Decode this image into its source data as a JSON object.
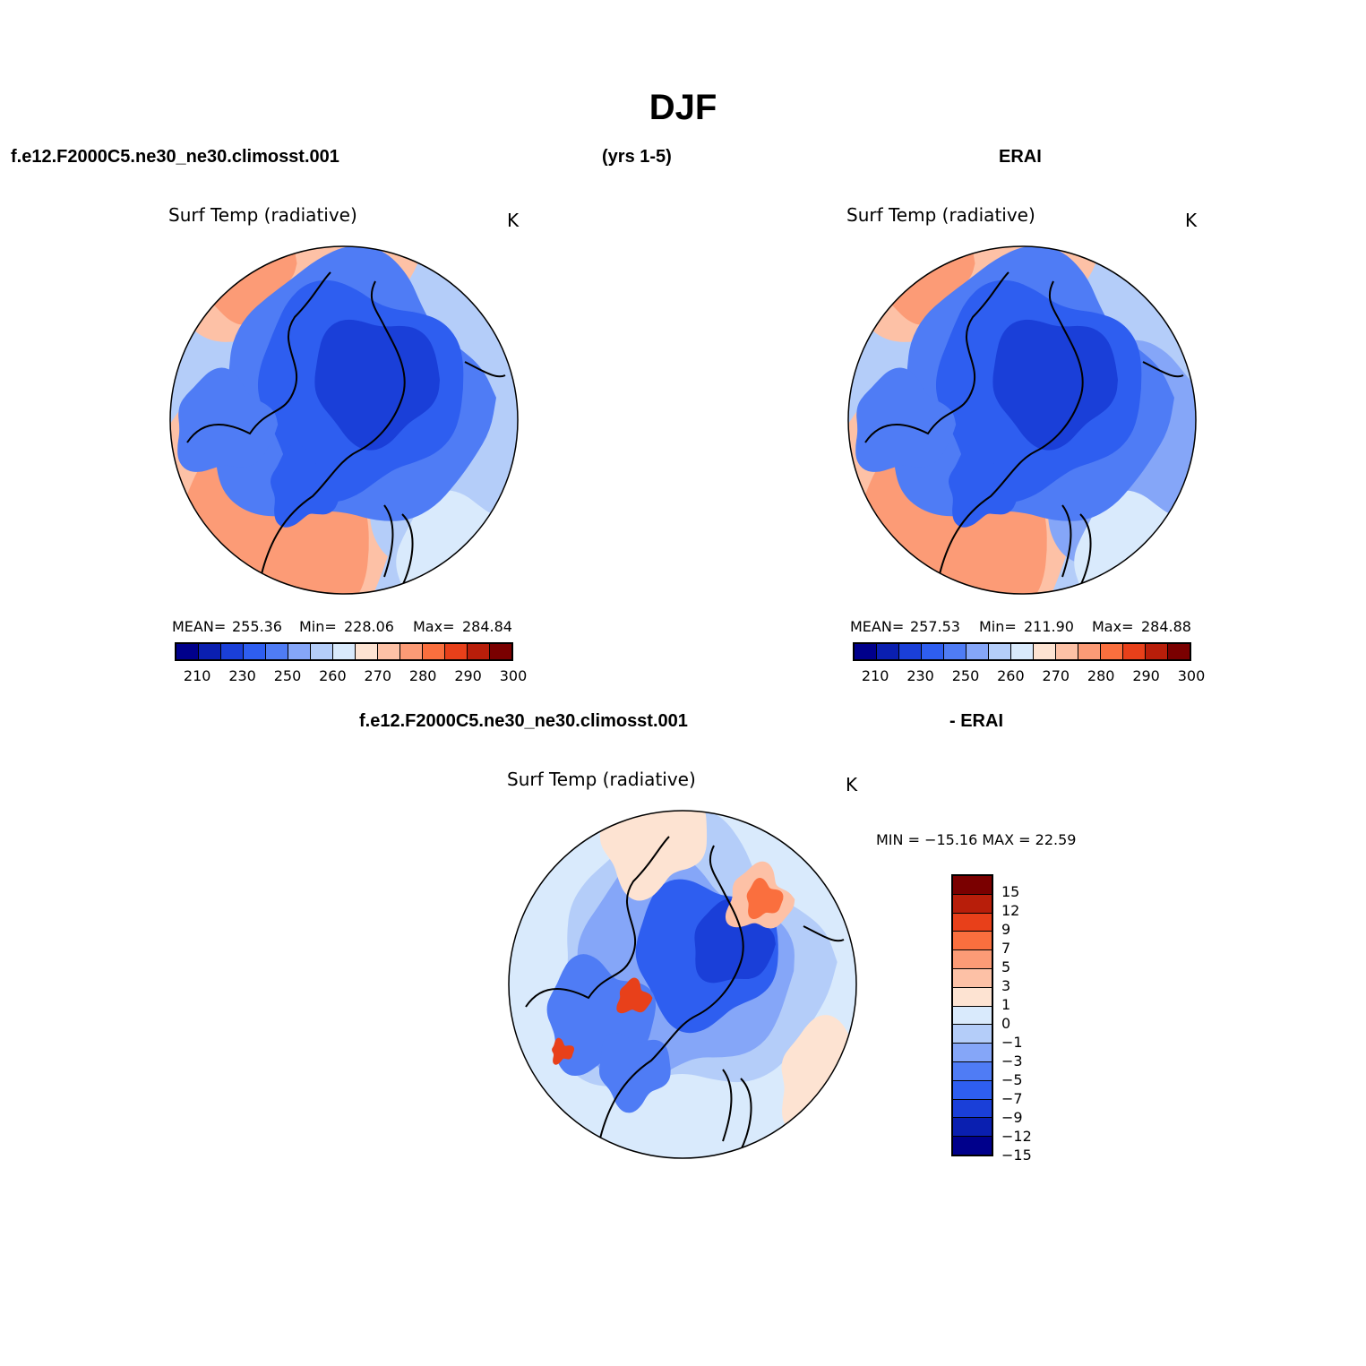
{
  "figure_title": "DJF",
  "header": {
    "case": "f.e12.F2000C5.ne30_ne30.climosst.001",
    "years": "(yrs 1-5)",
    "obs": "ERAI"
  },
  "colors": {
    "abs": [
      "#00008b",
      "#0a1fb0",
      "#1a3fd8",
      "#2e5ef0",
      "#4f7cf5",
      "#85a6f8",
      "#b4cdf9",
      "#d9eafc",
      "#fde3d2",
      "#fdc1a6",
      "#fc9b76",
      "#fa6f3e",
      "#e8401a",
      "#b81e0a",
      "#7a0000"
    ],
    "diff": [
      "#7a0000",
      "#b81e0a",
      "#e8401a",
      "#fa6f3e",
      "#fc9b76",
      "#fdc1a6",
      "#fde3d2",
      "#d9eafc",
      "#b4cdf9",
      "#85a6f8",
      "#4f7cf5",
      "#2e5ef0",
      "#1a3fd8",
      "#0a1fb0",
      "#00008b"
    ]
  },
  "chart_data": [
    {
      "id": "model",
      "type": "contour-map",
      "projection": "north-polar-stereographic",
      "title": "Surf Temp (radiative)",
      "units": "K",
      "stats": {
        "mean_label": "MEAN=",
        "mean": "255.36",
        "min_label": "Min=",
        "min": "228.06",
        "max_label": "Max=",
        "max": "284.84"
      },
      "colorbar": {
        "levels": [
          205,
          210,
          220,
          230,
          240,
          250,
          255,
          260,
          265,
          270,
          275,
          280,
          285,
          290,
          295,
          300
        ],
        "tick_labels": [
          "210",
          "230",
          "250",
          "260",
          "270",
          "280",
          "290",
          "300"
        ],
        "range": [
          210,
          300
        ]
      }
    },
    {
      "id": "obs",
      "type": "contour-map",
      "projection": "north-polar-stereographic",
      "title": "Surf Temp (radiative)",
      "units": "K",
      "stats": {
        "mean_label": "MEAN=",
        "mean": "257.53",
        "min_label": "Min=",
        "min": "211.90",
        "max_label": "Max=",
        "max": "284.88"
      },
      "colorbar": {
        "tick_labels": [
          "210",
          "230",
          "250",
          "260",
          "270",
          "280",
          "290",
          "300"
        ],
        "range": [
          210,
          300
        ]
      }
    },
    {
      "id": "diff",
      "type": "contour-map",
      "projection": "north-polar-stereographic",
      "header_left": "f.e12.F2000C5.ne30_ne30.climosst.001",
      "header_right": "- ERAI",
      "title": "Surf Temp (radiative)",
      "units": "K",
      "stats": {
        "text": "MIN = −15.16 MAX =  22.59",
        "min": -15.16,
        "max": 22.59
      },
      "colorbar": {
        "tick_labels": [
          "15",
          "12",
          "9",
          "7",
          "5",
          "3",
          "1",
          "0",
          "−1",
          "−3",
          "−5",
          "−7",
          "−9",
          "−12",
          "−15"
        ],
        "range": [
          -15,
          15
        ]
      }
    }
  ]
}
